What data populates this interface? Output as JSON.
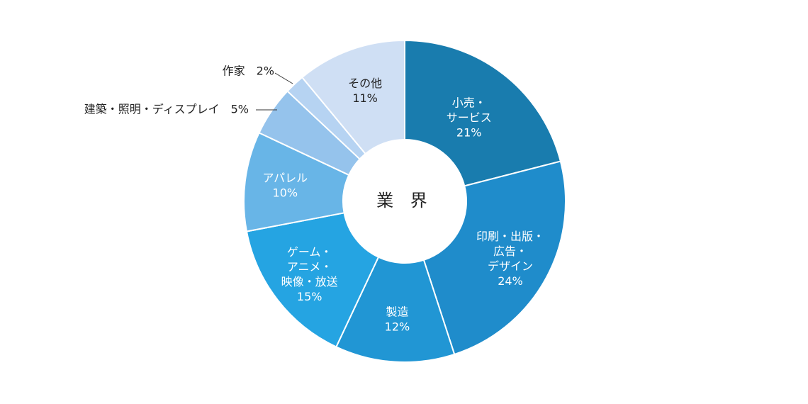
{
  "chart_data": {
    "type": "pie",
    "title": "業 界",
    "categories": [
      "小売・サービス",
      "印刷・出版・広告・デザイン",
      "製造",
      "ゲーム・アニメ・映像・放送",
      "アパレル",
      "建築・照明・ディスプレイ",
      "作家",
      "その他"
    ],
    "values": [
      21,
      24,
      12,
      15,
      10,
      5,
      2,
      11
    ],
    "value_labels": [
      "21%",
      "24%",
      "12%",
      "15%",
      "10%",
      "5%",
      "2%",
      "11%"
    ],
    "slice_label_lines": [
      [
        "小売・",
        "サービス",
        "21%"
      ],
      [
        "印刷・出版・",
        "広告・",
        "デザイン",
        "24%"
      ],
      [
        "製造",
        "12%"
      ],
      [
        "ゲーム・",
        "アニメ・",
        "映像・放送",
        "15%"
      ],
      [
        "アパレル",
        "10%"
      ],
      [],
      [],
      [
        "その他",
        "11%"
      ]
    ],
    "callout_labels": [
      null,
      null,
      null,
      null,
      null,
      "建築・照明・ディスプレイ　5%",
      "作家　2%",
      null
    ],
    "colors": [
      "#197cae",
      "#1f8ccb",
      "#2196d4",
      "#25a4e2",
      "#68b5e7",
      "#95c3ec",
      "#b6d3f2",
      "#cfdff4"
    ],
    "start_angle": "top",
    "direction": "clockwise",
    "donut": true,
    "legend": "none"
  }
}
